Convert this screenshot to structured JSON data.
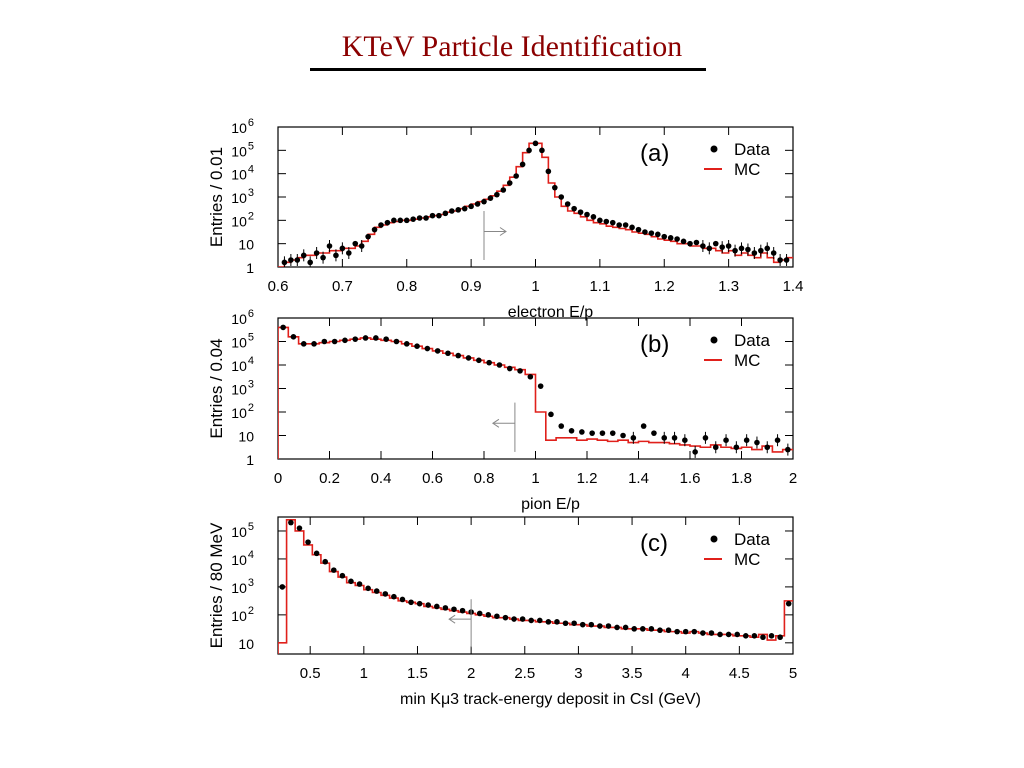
{
  "slide": {
    "title": "KTeV Particle Identification",
    "title_color": "#8b0000"
  },
  "colors": {
    "data": "#000000",
    "mc": "#e0201b",
    "cut_arrow": "#888888"
  },
  "chart_data": [
    {
      "type": "scatter",
      "panel_label": "(a)",
      "xlabel": "electron E/p",
      "ylabel": "Entries / 0.01",
      "xlim": [
        0.6,
        1.4
      ],
      "x_ticks": [
        0.6,
        0.7,
        0.8,
        0.9,
        1.0,
        1.1,
        1.2,
        1.3,
        1.4
      ],
      "x_tick_labels": [
        "0.6",
        "0.7",
        "0.8",
        "0.9",
        "1",
        "1.1",
        "1.2",
        "1.3",
        "1.4"
      ],
      "ylim": [
        0,
        6
      ],
      "y_scale": "log",
      "y_ticks": [
        0,
        1,
        2,
        3,
        4,
        5,
        6
      ],
      "y_tick_labels": [
        "1",
        "10",
        "10^2",
        "10^3",
        "10^4",
        "10^5",
        "10^6"
      ],
      "cut": {
        "x": 0.92,
        "direction": "right"
      },
      "legend": {
        "position": "top-right",
        "entries": [
          "Data",
          "MC"
        ]
      },
      "series": [
        {
          "name": "Data",
          "style": "points",
          "x": [
            0.61,
            0.62,
            0.63,
            0.64,
            0.65,
            0.66,
            0.67,
            0.68,
            0.69,
            0.7,
            0.71,
            0.72,
            0.73,
            0.74,
            0.75,
            0.76,
            0.77,
            0.78,
            0.79,
            0.8,
            0.81,
            0.82,
            0.83,
            0.84,
            0.85,
            0.86,
            0.87,
            0.88,
            0.89,
            0.9,
            0.91,
            0.92,
            0.93,
            0.94,
            0.95,
            0.96,
            0.97,
            0.98,
            0.99,
            1.0,
            1.01,
            1.02,
            1.03,
            1.04,
            1.05,
            1.06,
            1.07,
            1.08,
            1.09,
            1.1,
            1.11,
            1.12,
            1.13,
            1.14,
            1.15,
            1.16,
            1.17,
            1.18,
            1.19,
            1.2,
            1.21,
            1.22,
            1.23,
            1.24,
            1.25,
            1.26,
            1.27,
            1.28,
            1.29,
            1.3,
            1.31,
            1.32,
            1.33,
            1.34,
            1.35,
            1.36,
            1.37,
            1.38,
            1.39
          ],
          "y": [
            0.2,
            0.3,
            0.3,
            0.5,
            0.2,
            0.6,
            0.4,
            0.9,
            0.5,
            0.8,
            0.6,
            1.0,
            0.9,
            1.3,
            1.6,
            1.8,
            1.9,
            2.0,
            2.0,
            2.0,
            2.05,
            2.1,
            2.1,
            2.2,
            2.2,
            2.3,
            2.4,
            2.45,
            2.5,
            2.6,
            2.7,
            2.8,
            2.95,
            3.1,
            3.3,
            3.6,
            3.9,
            4.4,
            5.0,
            5.3,
            5.0,
            4.1,
            3.4,
            3.0,
            2.7,
            2.5,
            2.35,
            2.25,
            2.15,
            2.0,
            1.95,
            1.9,
            1.8,
            1.8,
            1.7,
            1.6,
            1.5,
            1.45,
            1.4,
            1.3,
            1.25,
            1.2,
            1.1,
            1.0,
            1.05,
            0.9,
            0.8,
            1.0,
            0.85,
            0.9,
            0.7,
            0.8,
            0.75,
            0.6,
            0.7,
            0.8,
            0.6,
            0.3,
            0.3
          ]
        },
        {
          "name": "MC",
          "style": "step",
          "x": [
            0.6,
            0.61,
            0.62,
            0.63,
            0.64,
            0.65,
            0.66,
            0.67,
            0.68,
            0.69,
            0.7,
            0.71,
            0.72,
            0.73,
            0.74,
            0.75,
            0.76,
            0.77,
            0.78,
            0.79,
            0.8,
            0.81,
            0.82,
            0.83,
            0.84,
            0.85,
            0.86,
            0.87,
            0.88,
            0.89,
            0.9,
            0.91,
            0.92,
            0.93,
            0.94,
            0.95,
            0.96,
            0.97,
            0.98,
            0.99,
            1.0,
            1.01,
            1.02,
            1.03,
            1.04,
            1.05,
            1.06,
            1.07,
            1.08,
            1.09,
            1.1,
            1.11,
            1.12,
            1.13,
            1.14,
            1.15,
            1.16,
            1.17,
            1.18,
            1.19,
            1.2,
            1.21,
            1.22,
            1.23,
            1.24,
            1.25,
            1.26,
            1.27,
            1.28,
            1.29,
            1.3,
            1.31,
            1.32,
            1.33,
            1.34,
            1.35,
            1.36,
            1.37,
            1.38,
            1.39
          ],
          "y": [
            0.0,
            0.2,
            0.3,
            0.4,
            0.5,
            0.5,
            0.6,
            0.6,
            0.7,
            0.7,
            0.8,
            0.8,
            0.9,
            1.1,
            1.4,
            1.7,
            1.8,
            1.9,
            1.95,
            2.0,
            2.0,
            2.05,
            2.1,
            2.15,
            2.2,
            2.25,
            2.35,
            2.4,
            2.5,
            2.6,
            2.7,
            2.8,
            2.9,
            3.05,
            3.25,
            3.5,
            3.85,
            4.3,
            4.9,
            5.3,
            5.3,
            4.7,
            3.6,
            3.0,
            2.6,
            2.4,
            2.3,
            2.15,
            2.0,
            1.9,
            1.85,
            1.75,
            1.7,
            1.65,
            1.6,
            1.5,
            1.45,
            1.4,
            1.3,
            1.2,
            1.15,
            1.1,
            1.0,
            1.0,
            0.9,
            0.9,
            0.8,
            0.8,
            0.7,
            0.6,
            0.7,
            0.5,
            0.6,
            0.5,
            0.4,
            0.6,
            0.4,
            0.2,
            0.3,
            0.4
          ]
        }
      ]
    },
    {
      "type": "scatter",
      "panel_label": "(b)",
      "xlabel": "pion E/p",
      "ylabel": "Entries / 0.04",
      "xlim": [
        0,
        2
      ],
      "x_ticks": [
        0,
        0.2,
        0.4,
        0.6,
        0.8,
        1.0,
        1.2,
        1.4,
        1.6,
        1.8,
        2.0
      ],
      "x_tick_labels": [
        "0",
        "0.2",
        "0.4",
        "0.6",
        "0.8",
        "1",
        "1.2",
        "1.4",
        "1.6",
        "1.8",
        "2"
      ],
      "ylim": [
        0,
        6
      ],
      "y_scale": "log",
      "y_ticks": [
        0,
        1,
        2,
        3,
        4,
        5,
        6
      ],
      "y_tick_labels": [
        "1",
        "10",
        "10^2",
        "10^3",
        "10^4",
        "10^5",
        "10^6"
      ],
      "cut": {
        "x": 0.92,
        "direction": "left"
      },
      "legend": {
        "position": "top-right",
        "entries": [
          "Data",
          "MC"
        ]
      },
      "series": [
        {
          "name": "Data",
          "style": "points",
          "x": [
            0.02,
            0.06,
            0.1,
            0.14,
            0.18,
            0.22,
            0.26,
            0.3,
            0.34,
            0.38,
            0.42,
            0.46,
            0.5,
            0.54,
            0.58,
            0.62,
            0.66,
            0.7,
            0.74,
            0.78,
            0.82,
            0.86,
            0.9,
            0.94,
            0.98,
            1.02,
            1.06,
            1.1,
            1.14,
            1.18,
            1.22,
            1.26,
            1.3,
            1.34,
            1.38,
            1.42,
            1.46,
            1.5,
            1.54,
            1.58,
            1.62,
            1.66,
            1.7,
            1.74,
            1.78,
            1.82,
            1.86,
            1.9,
            1.94,
            1.98
          ],
          "y": [
            5.6,
            5.2,
            4.9,
            4.9,
            5.0,
            5.0,
            5.05,
            5.1,
            5.15,
            5.15,
            5.1,
            5.0,
            4.9,
            4.8,
            4.7,
            4.6,
            4.5,
            4.4,
            4.3,
            4.2,
            4.1,
            4.0,
            3.85,
            3.75,
            3.5,
            3.1,
            1.9,
            1.4,
            1.2,
            1.15,
            1.1,
            1.1,
            1.1,
            1.0,
            0.9,
            1.4,
            1.1,
            0.9,
            0.9,
            0.8,
            0.3,
            0.9,
            0.5,
            0.8,
            0.5,
            0.8,
            0.7,
            0.5,
            0.8,
            0.4
          ]
        },
        {
          "name": "MC",
          "style": "step",
          "x": [
            0.0,
            0.04,
            0.08,
            0.12,
            0.16,
            0.2,
            0.24,
            0.28,
            0.32,
            0.36,
            0.4,
            0.44,
            0.48,
            0.52,
            0.56,
            0.6,
            0.64,
            0.68,
            0.72,
            0.76,
            0.8,
            0.84,
            0.88,
            0.92,
            0.96,
            1.0,
            1.04,
            1.08,
            1.12,
            1.16,
            1.2,
            1.24,
            1.28,
            1.32,
            1.36,
            1.4,
            1.44,
            1.48,
            1.52,
            1.56,
            1.6,
            1.64,
            1.68,
            1.72,
            1.76,
            1.8,
            1.84,
            1.88,
            1.92,
            1.96
          ],
          "y": [
            5.6,
            5.2,
            4.9,
            4.9,
            4.95,
            5.0,
            5.05,
            5.1,
            5.15,
            5.1,
            5.05,
            5.0,
            4.9,
            4.8,
            4.7,
            4.6,
            4.5,
            4.4,
            4.3,
            4.2,
            4.1,
            4.0,
            3.9,
            3.8,
            3.6,
            2.0,
            0.8,
            0.9,
            0.9,
            0.8,
            0.85,
            0.8,
            0.75,
            0.8,
            0.7,
            0.75,
            0.7,
            0.7,
            0.65,
            0.6,
            0.55,
            0.5,
            0.6,
            0.5,
            0.45,
            0.5,
            0.4,
            0.55,
            0.3,
            0.4
          ]
        }
      ]
    },
    {
      "type": "scatter",
      "panel_label": "(c)",
      "xlabel": "min Kμ3 track-energy deposit in CsI (GeV)",
      "ylabel": "Entries / 80 MeV",
      "xlim": [
        0.2,
        5
      ],
      "x_ticks": [
        0.5,
        1.0,
        1.5,
        2.0,
        2.5,
        3.0,
        3.5,
        4.0,
        4.5,
        5.0
      ],
      "x_tick_labels": [
        "0.5",
        "1",
        "1.5",
        "2",
        "2.5",
        "3",
        "3.5",
        "4",
        "4.5",
        "5"
      ],
      "ylim": [
        0.6,
        5.5
      ],
      "y_scale": "log",
      "y_ticks": [
        1,
        2,
        3,
        4,
        5
      ],
      "y_tick_labels": [
        "10",
        "10^2",
        "10^3",
        "10^4",
        "10^5"
      ],
      "cut": {
        "x": 2.0,
        "direction": "left"
      },
      "legend": {
        "position": "top-right",
        "entries": [
          "Data",
          "MC"
        ]
      },
      "series": [
        {
          "name": "Data",
          "style": "points",
          "x": [
            0.24,
            0.32,
            0.4,
            0.48,
            0.56,
            0.64,
            0.72,
            0.8,
            0.88,
            0.96,
            1.04,
            1.12,
            1.2,
            1.28,
            1.36,
            1.44,
            1.52,
            1.6,
            1.68,
            1.76,
            1.84,
            1.92,
            2.0,
            2.08,
            2.16,
            2.24,
            2.32,
            2.4,
            2.48,
            2.56,
            2.64,
            2.72,
            2.8,
            2.88,
            2.96,
            3.04,
            3.12,
            3.2,
            3.28,
            3.36,
            3.44,
            3.52,
            3.6,
            3.68,
            3.76,
            3.84,
            3.92,
            4.0,
            4.08,
            4.16,
            4.24,
            4.32,
            4.4,
            4.48,
            4.56,
            4.64,
            4.72,
            4.8,
            4.88,
            4.96
          ],
          "y": [
            3.0,
            5.3,
            5.1,
            4.6,
            4.2,
            3.9,
            3.6,
            3.4,
            3.2,
            3.1,
            2.95,
            2.85,
            2.75,
            2.65,
            2.55,
            2.45,
            2.4,
            2.35,
            2.3,
            2.25,
            2.2,
            2.15,
            2.1,
            2.05,
            2.0,
            1.95,
            1.9,
            1.85,
            1.85,
            1.8,
            1.8,
            1.75,
            1.75,
            1.7,
            1.7,
            1.65,
            1.65,
            1.6,
            1.6,
            1.55,
            1.55,
            1.5,
            1.5,
            1.5,
            1.45,
            1.45,
            1.4,
            1.4,
            1.4,
            1.35,
            1.35,
            1.3,
            1.3,
            1.3,
            1.25,
            1.25,
            1.2,
            1.25,
            1.2,
            2.4
          ]
        },
        {
          "name": "MC",
          "style": "step",
          "x": [
            0.2,
            0.28,
            0.36,
            0.44,
            0.52,
            0.6,
            0.68,
            0.76,
            0.84,
            0.92,
            1.0,
            1.08,
            1.16,
            1.24,
            1.32,
            1.4,
            1.48,
            1.56,
            1.64,
            1.72,
            1.8,
            1.88,
            1.96,
            2.04,
            2.12,
            2.2,
            2.28,
            2.36,
            2.44,
            2.52,
            2.6,
            2.68,
            2.76,
            2.84,
            2.92,
            3.0,
            3.08,
            3.16,
            3.24,
            3.32,
            3.4,
            3.48,
            3.56,
            3.64,
            3.72,
            3.8,
            3.88,
            3.96,
            4.04,
            4.12,
            4.2,
            4.28,
            4.36,
            4.44,
            4.52,
            4.6,
            4.68,
            4.76,
            4.84,
            4.92
          ],
          "y": [
            1.0,
            5.4,
            5.0,
            4.5,
            4.15,
            3.85,
            3.55,
            3.35,
            3.15,
            3.05,
            2.9,
            2.8,
            2.7,
            2.6,
            2.5,
            2.45,
            2.4,
            2.3,
            2.25,
            2.2,
            2.15,
            2.1,
            2.05,
            2.0,
            1.95,
            1.9,
            1.9,
            1.85,
            1.8,
            1.8,
            1.75,
            1.75,
            1.7,
            1.7,
            1.65,
            1.65,
            1.6,
            1.6,
            1.55,
            1.55,
            1.5,
            1.5,
            1.5,
            1.45,
            1.45,
            1.4,
            1.4,
            1.35,
            1.4,
            1.35,
            1.3,
            1.3,
            1.3,
            1.25,
            1.25,
            1.2,
            1.3,
            1.1,
            1.25,
            2.5
          ]
        }
      ]
    }
  ]
}
